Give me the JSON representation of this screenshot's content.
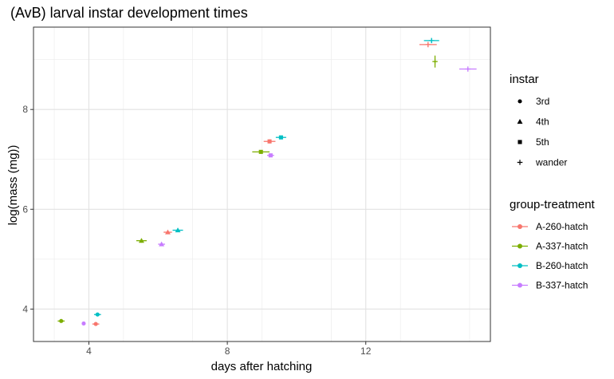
{
  "chart_data": {
    "type": "scatter",
    "title": "(AvB) larval instar development times",
    "xlabel": "days after hatching",
    "ylabel": "log(mass (mg))",
    "xlim": [
      2.4,
      15.6
    ],
    "ylim": [
      3.35,
      9.65
    ],
    "x_ticks": [
      4,
      8,
      12
    ],
    "y_ticks": [
      4,
      6,
      8
    ],
    "x_tick_labels": [
      "4",
      "8",
      "12"
    ],
    "y_tick_labels": [
      "4",
      "6",
      "8"
    ],
    "grid": true,
    "legend_position": "right",
    "shape_legend": {
      "title": "instar",
      "items": [
        {
          "label": "3rd",
          "shape": "circle"
        },
        {
          "label": "4th",
          "shape": "triangle"
        },
        {
          "label": "5th",
          "shape": "square"
        },
        {
          "label": "wander",
          "shape": "cross"
        }
      ]
    },
    "color_legend": {
      "title": "group-treatment",
      "items": [
        {
          "label": "A-260-hatch",
          "color": "#F8766D"
        },
        {
          "label": "A-337-hatch",
          "color": "#7CAE00"
        },
        {
          "label": "B-260-hatch",
          "color": "#00BFC4"
        },
        {
          "label": "B-337-hatch",
          "color": "#C77CFF"
        }
      ]
    },
    "series": [
      {
        "name": "A-260-hatch",
        "color": "#F8766D",
        "points": [
          {
            "instar": "3rd",
            "x": 4.2,
            "y": 3.7,
            "x_err": 0.1,
            "y_err": 0.03
          },
          {
            "instar": "4th",
            "x": 6.28,
            "y": 5.54,
            "x_err": 0.12,
            "y_err": 0.03
          },
          {
            "instar": "5th",
            "x": 9.22,
            "y": 7.36,
            "x_err": 0.17,
            "y_err": 0.04
          },
          {
            "instar": "wander",
            "x": 13.8,
            "y": 9.3,
            "x_err": 0.25,
            "y_err": 0.05
          }
        ]
      },
      {
        "name": "A-337-hatch",
        "color": "#7CAE00",
        "points": [
          {
            "instar": "3rd",
            "x": 3.2,
            "y": 3.76,
            "x_err": 0.1,
            "y_err": 0.03
          },
          {
            "instar": "4th",
            "x": 5.52,
            "y": 5.37,
            "x_err": 0.15,
            "y_err": 0.04
          },
          {
            "instar": "5th",
            "x": 8.97,
            "y": 7.15,
            "x_err": 0.25,
            "y_err": 0.03
          },
          {
            "instar": "wander",
            "x": 14.0,
            "y": 8.96,
            "x_err": 0.04,
            "y_err": 0.12
          }
        ]
      },
      {
        "name": "B-260-hatch",
        "color": "#00BFC4",
        "points": [
          {
            "instar": "3rd",
            "x": 4.25,
            "y": 3.89,
            "x_err": 0.1,
            "y_err": 0.03
          },
          {
            "instar": "4th",
            "x": 6.57,
            "y": 5.58,
            "x_err": 0.15,
            "y_err": 0.03
          },
          {
            "instar": "5th",
            "x": 9.55,
            "y": 7.44,
            "x_err": 0.15,
            "y_err": 0.03
          },
          {
            "instar": "wander",
            "x": 13.9,
            "y": 9.38,
            "x_err": 0.22,
            "y_err": 0.05
          }
        ]
      },
      {
        "name": "B-337-hatch",
        "color": "#C77CFF",
        "points": [
          {
            "instar": "3rd",
            "x": 3.85,
            "y": 3.71,
            "x_err": 0.05,
            "y_err": 0.02
          },
          {
            "instar": "4th",
            "x": 6.1,
            "y": 5.3,
            "x_err": 0.1,
            "y_err": 0.03
          },
          {
            "instar": "5th",
            "x": 9.25,
            "y": 7.08,
            "x_err": 0.1,
            "y_err": 0.03
          },
          {
            "instar": "wander",
            "x": 14.95,
            "y": 8.81,
            "x_err": 0.25,
            "y_err": 0.03
          }
        ]
      }
    ]
  }
}
